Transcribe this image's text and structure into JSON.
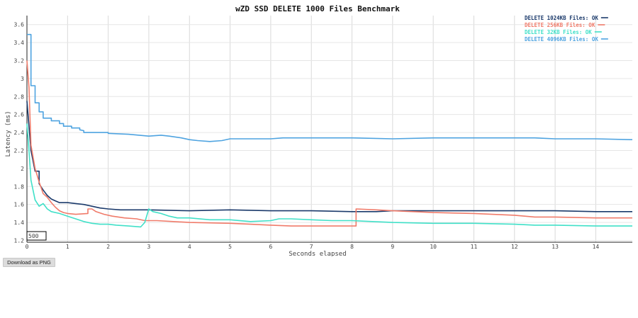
{
  "chart_data": {
    "type": "line",
    "title": "wZD SSD DELETE 1000 Files Benchmark",
    "xlabel": "Seconds elapsed",
    "ylabel": "Latency (ms)",
    "xlim": [
      0,
      14.9
    ],
    "ylim": [
      1.18,
      3.7
    ],
    "x_ticks": [
      0,
      1,
      2,
      3,
      4,
      5,
      6,
      7,
      8,
      9,
      10,
      11,
      12,
      13,
      14
    ],
    "y_ticks": [
      1.2,
      1.4,
      1.6,
      1.8,
      2,
      2.2,
      2.4,
      2.6,
      2.8,
      3,
      3.2,
      3.4,
      3.6
    ],
    "grid": true,
    "legend_position": "top-right",
    "annotation": "500",
    "series": [
      {
        "name": "DELETE 1024KB Files: OK",
        "color": "#1b3a6b",
        "points": [
          [
            0,
            2.75
          ],
          [
            0.1,
            2.2
          ],
          [
            0.2,
            1.97
          ],
          [
            0.3,
            1.97
          ],
          [
            0.3,
            1.83
          ],
          [
            0.4,
            1.76
          ],
          [
            0.5,
            1.7
          ],
          [
            0.6,
            1.66
          ],
          [
            0.7,
            1.64
          ],
          [
            0.8,
            1.62
          ],
          [
            1,
            1.62
          ],
          [
            1.2,
            1.61
          ],
          [
            1.4,
            1.6
          ],
          [
            1.6,
            1.58
          ],
          [
            1.8,
            1.56
          ],
          [
            2,
            1.55
          ],
          [
            2.3,
            1.54
          ],
          [
            2.6,
            1.54
          ],
          [
            3,
            1.54
          ],
          [
            4,
            1.53
          ],
          [
            5,
            1.54
          ],
          [
            6,
            1.53
          ],
          [
            7,
            1.53
          ],
          [
            8,
            1.52
          ],
          [
            8.6,
            1.52
          ],
          [
            9,
            1.53
          ],
          [
            10,
            1.53
          ],
          [
            11,
            1.53
          ],
          [
            12,
            1.53
          ],
          [
            13,
            1.53
          ],
          [
            14,
            1.52
          ],
          [
            14.9,
            1.52
          ]
        ]
      },
      {
        "name": "DELETE 256KB Files: OK",
        "color": "#f07b6a",
        "points": [
          [
            0,
            3.2
          ],
          [
            0.05,
            2.9
          ],
          [
            0.1,
            2.26
          ],
          [
            0.2,
            2.0
          ],
          [
            0.3,
            1.85
          ],
          [
            0.4,
            1.72
          ],
          [
            0.5,
            1.68
          ],
          [
            0.6,
            1.62
          ],
          [
            0.7,
            1.57
          ],
          [
            0.8,
            1.53
          ],
          [
            0.9,
            1.51
          ],
          [
            1.0,
            1.5
          ],
          [
            1.2,
            1.49
          ],
          [
            1.5,
            1.5
          ],
          [
            1.5,
            1.55
          ],
          [
            1.6,
            1.55
          ],
          [
            1.7,
            1.52
          ],
          [
            1.9,
            1.49
          ],
          [
            2.1,
            1.47
          ],
          [
            2.4,
            1.45
          ],
          [
            2.7,
            1.44
          ],
          [
            2.9,
            1.42
          ],
          [
            3.2,
            1.42
          ],
          [
            3.6,
            1.41
          ],
          [
            4,
            1.4
          ],
          [
            5,
            1.39
          ],
          [
            5.5,
            1.38
          ],
          [
            6,
            1.37
          ],
          [
            6.5,
            1.36
          ],
          [
            7,
            1.36
          ],
          [
            7.5,
            1.36
          ],
          [
            8.1,
            1.36
          ],
          [
            8.1,
            1.55
          ],
          [
            8.6,
            1.54
          ],
          [
            9,
            1.53
          ],
          [
            9.5,
            1.52
          ],
          [
            10,
            1.51
          ],
          [
            11,
            1.5
          ],
          [
            12,
            1.48
          ],
          [
            12.5,
            1.46
          ],
          [
            13,
            1.46
          ],
          [
            14,
            1.45
          ],
          [
            14.9,
            1.45
          ]
        ]
      },
      {
        "name": "DELETE 32KB Files: OK",
        "color": "#40e0c8",
        "points": [
          [
            0,
            2.5
          ],
          [
            0.05,
            2.2
          ],
          [
            0.1,
            1.87
          ],
          [
            0.2,
            1.65
          ],
          [
            0.3,
            1.58
          ],
          [
            0.4,
            1.61
          ],
          [
            0.5,
            1.55
          ],
          [
            0.6,
            1.52
          ],
          [
            0.8,
            1.5
          ],
          [
            1,
            1.47
          ],
          [
            1.2,
            1.44
          ],
          [
            1.4,
            1.41
          ],
          [
            1.6,
            1.39
          ],
          [
            1.8,
            1.38
          ],
          [
            2,
            1.38
          ],
          [
            2.2,
            1.37
          ],
          [
            2.5,
            1.36
          ],
          [
            2.8,
            1.35
          ],
          [
            2.9,
            1.4
          ],
          [
            3,
            1.55
          ],
          [
            3.1,
            1.52
          ],
          [
            3.3,
            1.5
          ],
          [
            3.5,
            1.47
          ],
          [
            3.7,
            1.45
          ],
          [
            4,
            1.45
          ],
          [
            4.5,
            1.43
          ],
          [
            5,
            1.43
          ],
          [
            5.5,
            1.41
          ],
          [
            6,
            1.42
          ],
          [
            6.2,
            1.44
          ],
          [
            6.5,
            1.44
          ],
          [
            7,
            1.43
          ],
          [
            7.5,
            1.42
          ],
          [
            8,
            1.42
          ],
          [
            9,
            1.4
          ],
          [
            10,
            1.39
          ],
          [
            11,
            1.39
          ],
          [
            12,
            1.38
          ],
          [
            12.5,
            1.37
          ],
          [
            13,
            1.37
          ],
          [
            14,
            1.36
          ],
          [
            14.9,
            1.36
          ]
        ]
      },
      {
        "name": "DELETE 4096KB Files: OK",
        "color": "#4ea3e0",
        "points": [
          [
            0,
            3.49
          ],
          [
            0.1,
            3.49
          ],
          [
            0.1,
            2.92
          ],
          [
            0.2,
            2.92
          ],
          [
            0.2,
            2.73
          ],
          [
            0.3,
            2.73
          ],
          [
            0.3,
            2.63
          ],
          [
            0.4,
            2.63
          ],
          [
            0.4,
            2.56
          ],
          [
            0.6,
            2.56
          ],
          [
            0.6,
            2.53
          ],
          [
            0.8,
            2.53
          ],
          [
            0.8,
            2.5
          ],
          [
            0.9,
            2.5
          ],
          [
            0.9,
            2.47
          ],
          [
            1.1,
            2.47
          ],
          [
            1.1,
            2.45
          ],
          [
            1.3,
            2.45
          ],
          [
            1.3,
            2.43
          ],
          [
            1.4,
            2.42
          ],
          [
            1.4,
            2.4
          ],
          [
            2,
            2.4
          ],
          [
            2,
            2.39
          ],
          [
            2.5,
            2.38
          ],
          [
            3,
            2.36
          ],
          [
            3.3,
            2.37
          ],
          [
            3.5,
            2.36
          ],
          [
            3.8,
            2.34
          ],
          [
            4,
            2.32
          ],
          [
            4.2,
            2.31
          ],
          [
            4.5,
            2.3
          ],
          [
            4.8,
            2.31
          ],
          [
            5,
            2.33
          ],
          [
            5.5,
            2.33
          ],
          [
            6,
            2.33
          ],
          [
            6.3,
            2.34
          ],
          [
            7,
            2.34
          ],
          [
            8,
            2.34
          ],
          [
            9,
            2.33
          ],
          [
            10,
            2.34
          ],
          [
            11,
            2.34
          ],
          [
            12,
            2.34
          ],
          [
            12.5,
            2.34
          ],
          [
            13,
            2.33
          ],
          [
            14,
            2.33
          ],
          [
            14.9,
            2.32
          ]
        ]
      }
    ]
  },
  "download_button": {
    "label": "Download as PNG"
  }
}
